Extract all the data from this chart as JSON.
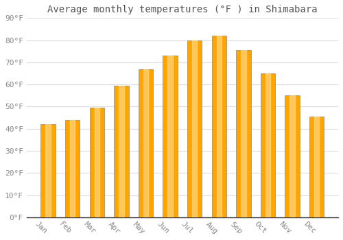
{
  "title": "Average monthly temperatures (°F ) in Shimabara",
  "months": [
    "Jan",
    "Feb",
    "Mar",
    "Apr",
    "May",
    "Jun",
    "Jul",
    "Aug",
    "Sep",
    "Oct",
    "Nov",
    "Dec"
  ],
  "values": [
    42,
    44,
    49.5,
    59.5,
    67,
    73,
    80,
    82,
    75.5,
    65,
    55,
    45.5
  ],
  "bar_color": "#FFA500",
  "bar_edge_color": "#888888",
  "background_color": "#ffffff",
  "plot_bg_color": "#ffffff",
  "ylim": [
    0,
    90
  ],
  "yticks": [
    0,
    10,
    20,
    30,
    40,
    50,
    60,
    70,
    80,
    90
  ],
  "ytick_labels": [
    "0°F",
    "10°F",
    "20°F",
    "30°F",
    "40°F",
    "50°F",
    "60°F",
    "70°F",
    "80°F",
    "90°F"
  ],
  "title_fontsize": 10,
  "tick_fontsize": 8,
  "grid_color": "#dddddd",
  "tick_color": "#888888",
  "bar_width": 0.6,
  "xlabel_rotation": -45
}
